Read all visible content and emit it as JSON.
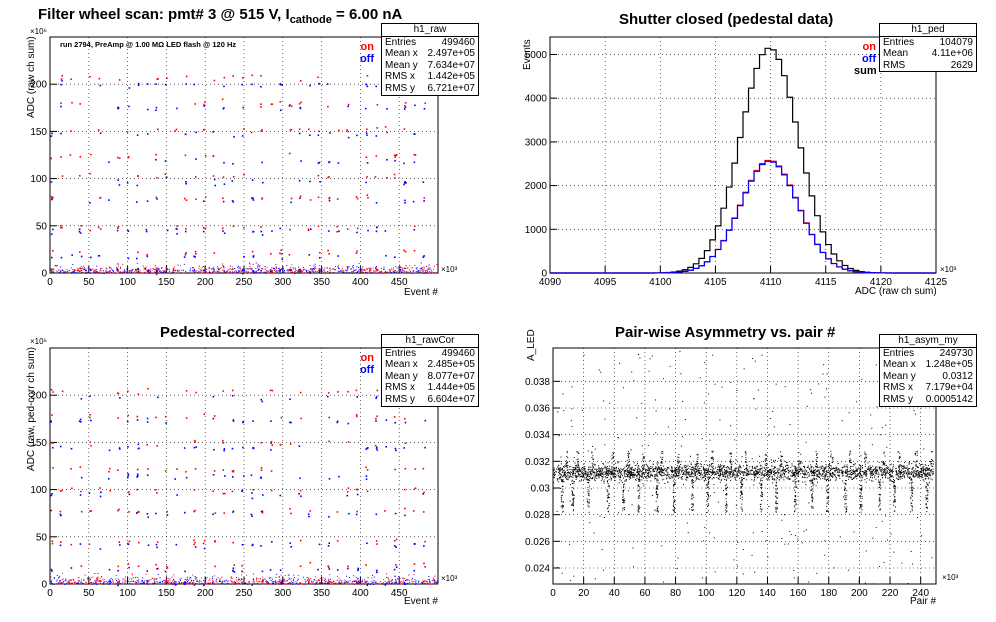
{
  "main_title": {
    "prefix": "Filter wheel scan: pmt#   3 @   515 V, I",
    "subscript": "cathode",
    "suffix": "  = 6.00 nA"
  },
  "panels": {
    "raw": {
      "stats": {
        "name": "h1_raw",
        "rows": [
          [
            "Entries",
            "499460"
          ],
          [
            "Mean x",
            "2.497e+05"
          ],
          [
            "Mean y",
            "7.634e+07"
          ],
          [
            "RMS x",
            "1.442e+05"
          ],
          [
            "RMS y",
            "6.721e+07"
          ]
        ]
      },
      "run_info": "run 2794, PreAmp @ 1.00 MΩ  LED flash @  120 Hz",
      "legend": [
        {
          "label": "on",
          "color": "#ff0000"
        },
        {
          "label": "off",
          "color": "#0000ff"
        }
      ],
      "x_multiplier": "×10³",
      "y_multiplier": "×10⁶"
    },
    "ped": {
      "title": "Shutter closed (pedestal data)",
      "stats": {
        "name": "h1_ped",
        "rows": [
          [
            "Entries",
            "104079"
          ],
          [
            "Mean",
            "4.11e+06"
          ],
          [
            "RMS",
            "2629"
          ]
        ]
      },
      "legend": [
        {
          "label": "on",
          "color": "#ff0000"
        },
        {
          "label": "off",
          "color": "#0000ff"
        },
        {
          "label": "sum",
          "color": "#000000"
        }
      ],
      "x_multiplier": "×10³"
    },
    "rawcor": {
      "title": "Pedestal-corrected",
      "stats": {
        "name": "h1_rawCor",
        "rows": [
          [
            "Entries",
            "499460"
          ],
          [
            "Mean x",
            "2.485e+05"
          ],
          [
            "Mean y",
            "8.077e+07"
          ],
          [
            "RMS x",
            "1.444e+05"
          ],
          [
            "RMS y",
            "6.604e+07"
          ]
        ]
      },
      "legend": [
        {
          "label": "on",
          "color": "#ff0000"
        },
        {
          "label": "off",
          "color": "#0000ff"
        }
      ],
      "x_multiplier": "×10³",
      "y_multiplier": "×10⁶"
    },
    "asym": {
      "title": "Pair-wise Asymmetry vs. pair #",
      "stats": {
        "name": "h1_asym_my",
        "rows": [
          [
            "Entries",
            "249730"
          ],
          [
            "Mean x",
            "1.248e+05"
          ],
          [
            "Mean y",
            "0.0312"
          ],
          [
            "RMS x",
            "7.179e+04"
          ],
          [
            "RMS y",
            "0.0005142"
          ]
        ]
      },
      "x_multiplier": "×10³"
    }
  },
  "chart_data": [
    {
      "id": "raw",
      "type": "scatter",
      "xlabel": "Event #",
      "ylabel": "ADC (raw ch sum)",
      "xlim": [
        0,
        500
      ],
      "ylim": [
        0,
        250
      ],
      "x_ticks": [
        0,
        50,
        100,
        150,
        200,
        250,
        300,
        350,
        400,
        450
      ],
      "y_ticks": [
        0,
        50,
        100,
        150,
        200
      ],
      "grid": true,
      "series": [
        {
          "name": "on",
          "color": "#ff0000",
          "levels": [
            5,
            22,
            48,
            80,
            103,
            125,
            152,
            180,
            208
          ]
        },
        {
          "name": "off",
          "color": "#0000ff",
          "levels": [
            3,
            18,
            45,
            77,
            97,
            118,
            148,
            176,
            200
          ]
        }
      ]
    },
    {
      "id": "ped",
      "type": "histogram",
      "xlabel": "ADC (raw ch sum)",
      "ylabel": "Events",
      "xlim": [
        4090,
        4125
      ],
      "ylim": [
        0,
        5400
      ],
      "x_ticks": [
        4090,
        4095,
        4100,
        4105,
        4110,
        4115,
        4120,
        4125
      ],
      "y_ticks": [
        0,
        1000,
        2000,
        3000,
        4000,
        5000
      ],
      "grid": true,
      "bin_width": 0.5,
      "series": [
        {
          "name": "sum",
          "color": "#000000",
          "center": 4109.9,
          "sigma": 2.63,
          "peak": 5150
        },
        {
          "name": "on",
          "color": "#ff0000",
          "center": 4109.9,
          "sigma": 2.63,
          "peak": 2580
        },
        {
          "name": "off",
          "color": "#0000ff",
          "center": 4109.9,
          "sigma": 2.63,
          "peak": 2560
        }
      ]
    },
    {
      "id": "rawcor",
      "type": "scatter",
      "xlabel": "Event #",
      "ylabel": "ADC (raw, ped-corr ch sum)",
      "xlim": [
        0,
        500
      ],
      "ylim": [
        0,
        250
      ],
      "x_ticks": [
        0,
        50,
        100,
        150,
        200,
        250,
        300,
        350,
        400,
        450
      ],
      "y_ticks": [
        0,
        50,
        100,
        150,
        200
      ],
      "grid": true,
      "series": [
        {
          "name": "on",
          "color": "#ff0000",
          "levels": [
            3,
            20,
            45,
            78,
            100,
            122,
            150,
            178,
            205
          ]
        },
        {
          "name": "off",
          "color": "#0000ff",
          "levels": [
            1,
            16,
            42,
            75,
            95,
            115,
            145,
            173,
            198
          ]
        }
      ]
    },
    {
      "id": "asym",
      "type": "scatter",
      "xlabel": "Pair #",
      "ylabel": "A_LED",
      "xlim": [
        0,
        250
      ],
      "ylim": [
        0.0228,
        0.0405
      ],
      "x_ticks": [
        0,
        20,
        40,
        60,
        80,
        100,
        120,
        140,
        160,
        180,
        200,
        220,
        240
      ],
      "y_ticks": [
        0.024,
        0.026,
        0.028,
        0.03,
        0.032,
        0.034,
        0.036,
        0.038
      ],
      "y_tick_labels": [
        "0.024",
        "0.026",
        "0.028",
        "0.03",
        "0.032",
        "0.034",
        "0.036",
        "0.038"
      ],
      "grid": true,
      "band": {
        "center": 0.0312,
        "width": 0.0005
      },
      "spike_positions": [
        5,
        12,
        22,
        35,
        45,
        55,
        67,
        78,
        90,
        100,
        112,
        122,
        135,
        145,
        157,
        168,
        178,
        190,
        200,
        212,
        222,
        233,
        243
      ]
    }
  ]
}
